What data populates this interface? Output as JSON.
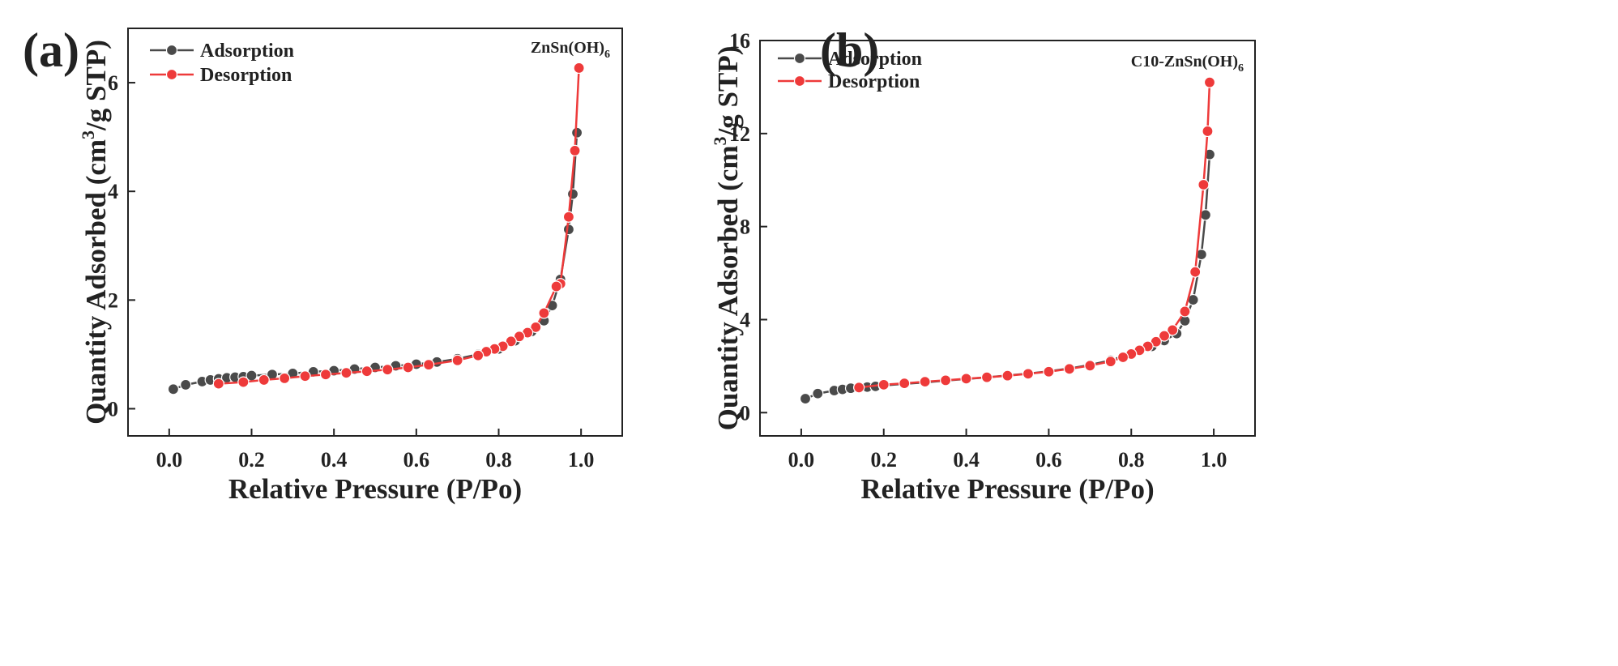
{
  "chart_data": [
    {
      "type": "line",
      "panel_label": "(a)",
      "annotation": "ZnSn(OH)",
      "annotation_subscript": "6",
      "xlabel": "Relative Pressure (P/Po)",
      "ylabel_main": "Quantity Adsorbed (cm",
      "ylabel_sup": "3",
      "ylabel_tail": "/g STP)",
      "xlim": [
        -0.1,
        1.1
      ],
      "ylim": [
        -0.5,
        7.0
      ],
      "xticks": [
        0.0,
        0.2,
        0.4,
        0.6,
        0.8,
        1.0
      ],
      "xtick_labels": [
        "0.0",
        "0.2",
        "0.4",
        "0.6",
        "0.8",
        "1.0"
      ],
      "yticks": [
        0,
        2,
        4,
        6
      ],
      "ytick_labels": [
        "0",
        "2",
        "4",
        "6"
      ],
      "legend_position": "top-left",
      "series": [
        {
          "name": "Adsorption",
          "color": "#4a4a4a",
          "x": [
            0.01,
            0.04,
            0.08,
            0.1,
            0.12,
            0.14,
            0.16,
            0.18,
            0.2,
            0.25,
            0.3,
            0.35,
            0.4,
            0.45,
            0.5,
            0.55,
            0.6,
            0.65,
            0.7,
            0.75,
            0.8,
            0.84,
            0.88,
            0.91,
            0.93,
            0.95,
            0.97,
            0.98,
            0.99
          ],
          "y": [
            0.36,
            0.44,
            0.5,
            0.53,
            0.55,
            0.57,
            0.58,
            0.59,
            0.61,
            0.63,
            0.65,
            0.68,
            0.7,
            0.73,
            0.76,
            0.79,
            0.82,
            0.86,
            0.92,
            1.0,
            1.1,
            1.25,
            1.42,
            1.62,
            1.9,
            2.38,
            3.3,
            3.95,
            5.08
          ]
        },
        {
          "name": "Desorption",
          "color": "#ee3a3a",
          "x": [
            0.995,
            0.985,
            0.97,
            0.95,
            0.94,
            0.91,
            0.89,
            0.87,
            0.85,
            0.83,
            0.81,
            0.79,
            0.77,
            0.75,
            0.7,
            0.63,
            0.58,
            0.53,
            0.48,
            0.43,
            0.38,
            0.33,
            0.28,
            0.23,
            0.18,
            0.12
          ],
          "y": [
            6.27,
            4.75,
            3.53,
            2.3,
            2.25,
            1.76,
            1.5,
            1.4,
            1.33,
            1.24,
            1.15,
            1.1,
            1.05,
            0.98,
            0.89,
            0.81,
            0.76,
            0.72,
            0.69,
            0.66,
            0.63,
            0.6,
            0.56,
            0.53,
            0.49,
            0.46
          ]
        }
      ]
    },
    {
      "type": "line",
      "panel_label": "(b)",
      "annotation": "C10-ZnSn(OH)",
      "annotation_subscript": "6",
      "xlabel": "Relative Pressure (P/Po)",
      "ylabel_main": "Quantity Adsorbed (cm",
      "ylabel_sup": "3",
      "ylabel_tail": "/g STP)",
      "xlim": [
        -0.1,
        1.1
      ],
      "ylim": [
        -1.0,
        16.0
      ],
      "xticks": [
        0.0,
        0.2,
        0.4,
        0.6,
        0.8,
        1.0
      ],
      "xtick_labels": [
        "0.0",
        "0.2",
        "0.4",
        "0.6",
        "0.8",
        "1.0"
      ],
      "yticks": [
        0,
        4,
        8,
        12,
        16
      ],
      "ytick_labels": [
        "0",
        "4",
        "8",
        "12",
        "16"
      ],
      "legend_position": "top-left",
      "series": [
        {
          "name": "Adsorption",
          "color": "#4a4a4a",
          "x": [
            0.01,
            0.04,
            0.08,
            0.1,
            0.12,
            0.14,
            0.16,
            0.18,
            0.2,
            0.25,
            0.3,
            0.35,
            0.4,
            0.45,
            0.5,
            0.55,
            0.6,
            0.65,
            0.7,
            0.75,
            0.8,
            0.85,
            0.88,
            0.91,
            0.93,
            0.95,
            0.97,
            0.98,
            0.99
          ],
          "y": [
            0.6,
            0.82,
            0.95,
            1.0,
            1.05,
            1.08,
            1.1,
            1.13,
            1.17,
            1.24,
            1.3,
            1.38,
            1.45,
            1.52,
            1.6,
            1.68,
            1.78,
            1.9,
            2.05,
            2.25,
            2.55,
            2.85,
            3.1,
            3.4,
            3.95,
            4.85,
            6.8,
            8.5,
            11.1
          ]
        },
        {
          "name": "Desorption",
          "color": "#ee3a3a",
          "x": [
            0.99,
            0.985,
            0.975,
            0.955,
            0.93,
            0.9,
            0.88,
            0.86,
            0.84,
            0.82,
            0.8,
            0.78,
            0.75,
            0.7,
            0.65,
            0.6,
            0.55,
            0.5,
            0.45,
            0.4,
            0.35,
            0.3,
            0.25,
            0.2,
            0.14
          ],
          "y": [
            14.2,
            12.1,
            9.8,
            6.05,
            4.35,
            3.55,
            3.3,
            3.05,
            2.85,
            2.68,
            2.52,
            2.38,
            2.2,
            2.02,
            1.88,
            1.76,
            1.67,
            1.59,
            1.52,
            1.46,
            1.39,
            1.33,
            1.26,
            1.2,
            1.08
          ]
        }
      ]
    }
  ]
}
